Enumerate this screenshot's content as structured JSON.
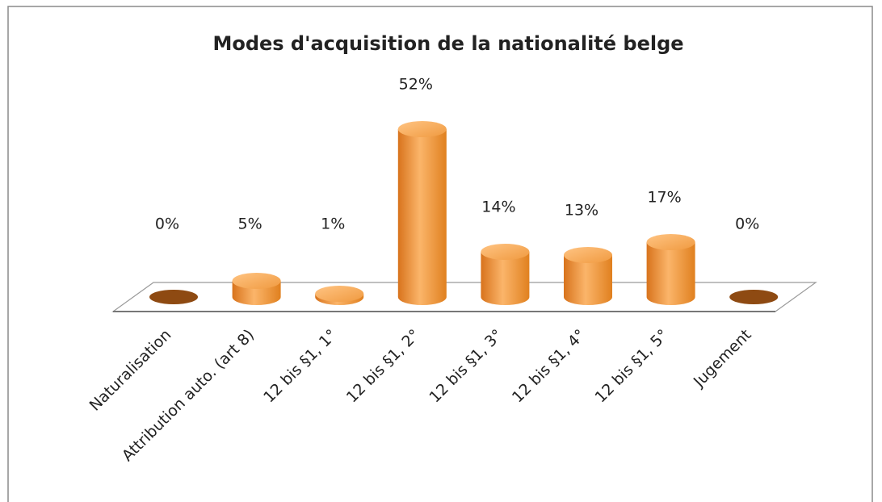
{
  "chart_data": {
    "type": "bar3d",
    "title": "Modes d'acquisition de la nationalité belge",
    "categories": [
      "Naturalisation",
      "Attribution auto. (art 8)",
      "12 bis §1, 1°",
      "12 bis §1, 2°",
      "12 bis §1, 3°",
      "12 bis §1, 4°",
      "12 bis §1, 5°",
      "Jugement"
    ],
    "values": [
      0,
      5,
      1,
      52,
      14,
      13,
      17,
      0
    ],
    "value_labels": [
      "0%",
      "5%",
      "1%",
      "52%",
      "14%",
      "13%",
      "17%",
      "0%"
    ],
    "color": "#f08c2e"
  }
}
